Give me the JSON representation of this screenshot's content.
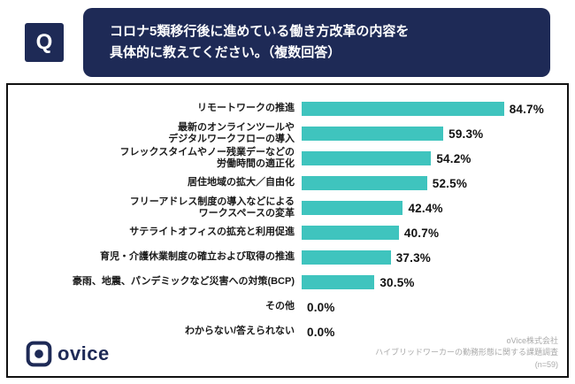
{
  "header": {
    "q_label": "Q",
    "title_line1": "コロナ5類移行後に進めている働き方改革の内容を",
    "title_line2": "具体的に教えてください。（複数回答）"
  },
  "chart_data": {
    "type": "bar",
    "orientation": "horizontal",
    "title": "コロナ5類移行後に進めている働き方改革の内容（複数回答）",
    "categories": [
      "リモートワークの推進",
      "最新のオンラインツールや\nデジタルワークフローの導入",
      "フレックスタイムやノー残業デーなどの\n労働時間の適正化",
      "居住地域の拡大／自由化",
      "フリーアドレス制度の導入などによる\nワークスペースの変革",
      "サテライトオフィスの拡充と利用促進",
      "育児・介護休業制度の確立および取得の推進",
      "豪雨、地震、パンデミックなど災害への対策(BCP)",
      "その他",
      "わからない/答えられない"
    ],
    "values": [
      84.7,
      59.3,
      54.2,
      52.5,
      42.4,
      40.7,
      37.3,
      30.5,
      0.0,
      0.0
    ],
    "value_labels": [
      "84.7%",
      "59.3%",
      "54.2%",
      "52.5%",
      "42.4%",
      "40.7%",
      "37.3%",
      "30.5%",
      "0.0%",
      "0.0%"
    ],
    "xlim": [
      0,
      100
    ],
    "bar_color": "#3fc4be",
    "grid": false,
    "legend": "none"
  },
  "footer": {
    "logo_text": "ovice",
    "source_line1": "oVice株式会社",
    "source_line2": "ハイブリッドワーカーの勤務形態に関する課題調査",
    "source_line3": "(n=59)"
  },
  "colors": {
    "navy": "#1e2a56",
    "teal": "#3fc4be",
    "frame_border": "#111111",
    "source_text": "#a9a9a9"
  }
}
